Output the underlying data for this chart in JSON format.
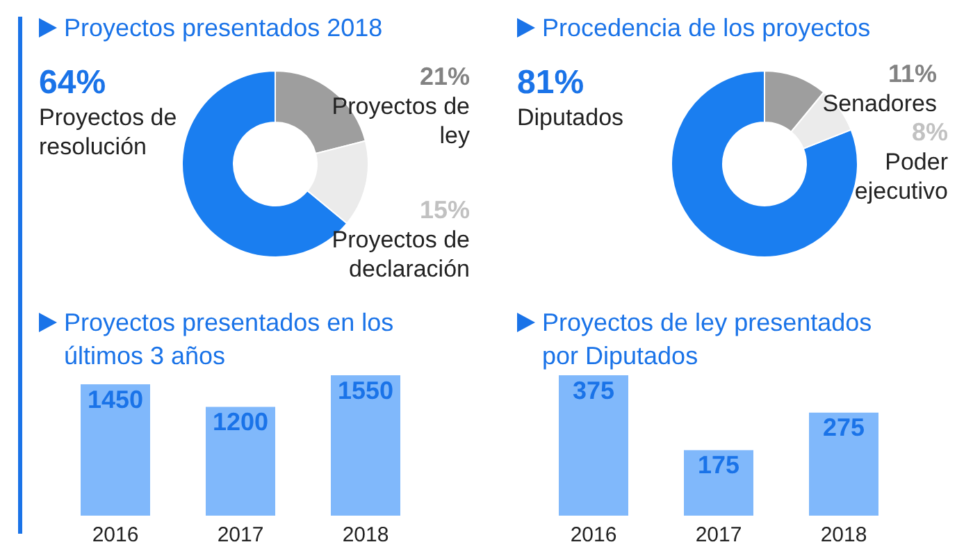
{
  "chart_data": [
    {
      "type": "donut",
      "title": "Proyectos presentados 2018",
      "categories": [
        "Proyectos de resolución",
        "Proyectos de ley",
        "Proyectos de declaración"
      ],
      "values": [
        64,
        21,
        15
      ],
      "colors": [
        "#1a7ef0",
        "#9e9e9e",
        "#ebebeb"
      ],
      "value_labels": [
        "64%",
        "21%",
        "15%"
      ]
    },
    {
      "type": "donut",
      "title": "Procedencia de los proyectos",
      "categories": [
        "Diputados",
        "Senadores",
        "Poder ejecutivo"
      ],
      "values": [
        81,
        11,
        8
      ],
      "colors": [
        "#1a7ef0",
        "#9e9e9e",
        "#ebebeb"
      ],
      "value_labels": [
        "81%",
        "11%",
        "8%"
      ]
    },
    {
      "type": "bar",
      "title": "Proyectos presentados en los últimos 3 años",
      "categories": [
        "2016",
        "2017",
        "2018"
      ],
      "values": [
        1450,
        1200,
        1550
      ],
      "color": "#80b8fb",
      "data_labels": true
    },
    {
      "type": "bar",
      "title": "Proyectos de ley presentados por Diputados",
      "categories": [
        "2016",
        "2017",
        "2018"
      ],
      "values": [
        375,
        175,
        275
      ],
      "color": "#80b8fb",
      "data_labels": true
    }
  ]
}
